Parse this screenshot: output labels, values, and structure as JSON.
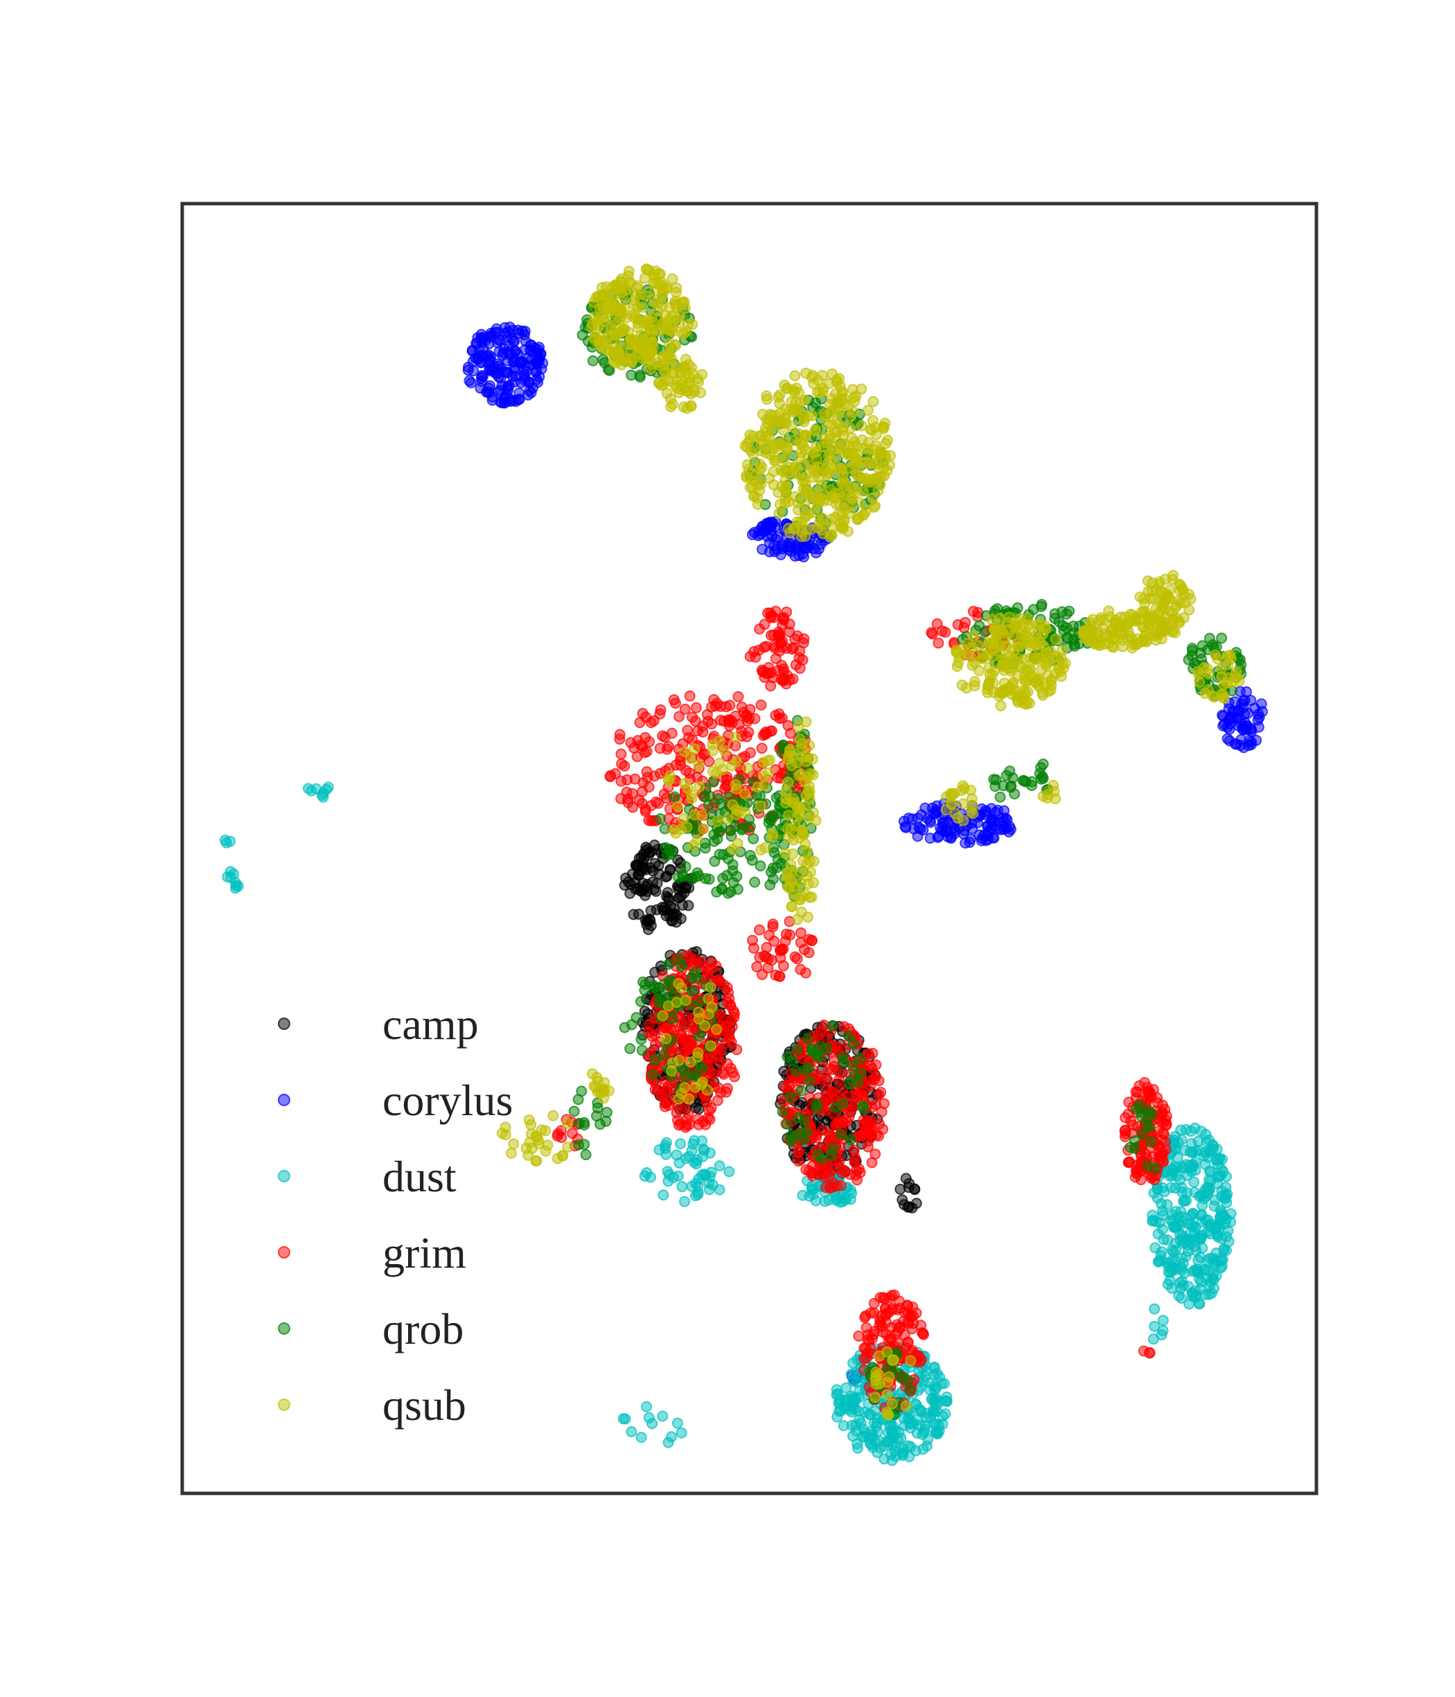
{
  "chart_data": {
    "type": "scatter",
    "title": "",
    "xlabel": "",
    "ylabel": "",
    "xlim": [
      0,
      100
    ],
    "ylim": [
      0,
      100
    ],
    "grid": false,
    "axes_ticks": false,
    "legend": {
      "placement": "lower-left"
    },
    "series": [
      {
        "name": "camp",
        "color": "#000000",
        "clusters": [
          {
            "cx": 42.0,
            "cy": 47.0,
            "rx": 3.0,
            "ry": 3.5,
            "n": 110
          },
          {
            "cx": 44.5,
            "cy": 36.0,
            "rx": 4.0,
            "ry": 6.5,
            "n": 200
          },
          {
            "cx": 57.0,
            "cy": 30.5,
            "rx": 4.5,
            "ry": 6.0,
            "n": 220
          },
          {
            "cx": 64.0,
            "cy": 23.0,
            "rx": 0.8,
            "ry": 1.5,
            "n": 12
          }
        ]
      },
      {
        "name": "corylus",
        "color": "#0000ff",
        "clusters": [
          {
            "cx": 28.5,
            "cy": 87.5,
            "rx": 3.5,
            "ry": 3.0,
            "n": 170
          },
          {
            "cx": 53.5,
            "cy": 74.0,
            "rx": 3.5,
            "ry": 1.5,
            "n": 90
          },
          {
            "cx": 68.5,
            "cy": 52.0,
            "rx": 5.0,
            "ry": 1.6,
            "n": 110
          },
          {
            "cx": 93.5,
            "cy": 60.0,
            "rx": 2.0,
            "ry": 2.2,
            "n": 60
          },
          {
            "cx": 59.5,
            "cy": 9.0,
            "rx": 0.6,
            "ry": 0.5,
            "n": 4
          }
        ]
      },
      {
        "name": "dust",
        "color": "#00bfbf",
        "clusters": [
          {
            "cx": 89.0,
            "cy": 21.5,
            "rx": 3.5,
            "ry": 7.0,
            "n": 300
          },
          {
            "cx": 62.5,
            "cy": 7.0,
            "rx": 5.0,
            "ry": 4.5,
            "n": 260
          },
          {
            "cx": 44.5,
            "cy": 25.0,
            "rx": 4.0,
            "ry": 2.5,
            "n": 50
          },
          {
            "cx": 57.0,
            "cy": 23.5,
            "rx": 2.5,
            "ry": 1.2,
            "n": 40
          },
          {
            "cx": 12.0,
            "cy": 54.5,
            "rx": 1.2,
            "ry": 0.6,
            "n": 8
          },
          {
            "cx": 4.5,
            "cy": 47.5,
            "rx": 0.6,
            "ry": 1.2,
            "n": 8
          },
          {
            "cx": 4.0,
            "cy": 50.5,
            "rx": 0.4,
            "ry": 0.4,
            "n": 3
          },
          {
            "cx": 41.5,
            "cy": 5.5,
            "rx": 3.0,
            "ry": 1.8,
            "n": 12
          },
          {
            "cx": 86.0,
            "cy": 13.0,
            "rx": 1.0,
            "ry": 1.5,
            "n": 6
          }
        ]
      },
      {
        "name": "grim",
        "color": "#ff0000",
        "clusters": [
          {
            "cx": 46.5,
            "cy": 56.5,
            "rx": 9.0,
            "ry": 5.5,
            "n": 260
          },
          {
            "cx": 52.5,
            "cy": 65.5,
            "rx": 2.5,
            "ry": 3.0,
            "n": 70
          },
          {
            "cx": 45.0,
            "cy": 35.0,
            "rx": 4.0,
            "ry": 7.0,
            "n": 260
          },
          {
            "cx": 57.5,
            "cy": 30.0,
            "rx": 4.5,
            "ry": 6.5,
            "n": 260
          },
          {
            "cx": 85.0,
            "cy": 28.0,
            "rx": 2.0,
            "ry": 4.0,
            "n": 130
          },
          {
            "cx": 62.5,
            "cy": 11.0,
            "rx": 3.0,
            "ry": 4.5,
            "n": 140
          },
          {
            "cx": 70.0,
            "cy": 66.5,
            "rx": 4.0,
            "ry": 2.0,
            "n": 30
          },
          {
            "cx": 53.0,
            "cy": 42.0,
            "rx": 3.0,
            "ry": 2.5,
            "n": 40
          },
          {
            "cx": 34.0,
            "cy": 28.0,
            "rx": 1.0,
            "ry": 1.5,
            "n": 10
          },
          {
            "cx": 85.0,
            "cy": 11.0,
            "rx": 0.5,
            "ry": 0.5,
            "n": 3
          }
        ]
      },
      {
        "name": "qrob",
        "color": "#007f00",
        "clusters": [
          {
            "cx": 40.0,
            "cy": 90.0,
            "rx": 5.0,
            "ry": 3.5,
            "n": 90
          },
          {
            "cx": 56.0,
            "cy": 79.5,
            "rx": 6.0,
            "ry": 5.5,
            "n": 110
          },
          {
            "cx": 74.5,
            "cy": 66.5,
            "rx": 6.0,
            "ry": 2.5,
            "n": 90
          },
          {
            "cx": 91.0,
            "cy": 64.0,
            "rx": 2.5,
            "ry": 2.5,
            "n": 50
          },
          {
            "cx": 48.5,
            "cy": 51.0,
            "rx": 7.0,
            "ry": 4.5,
            "n": 120
          },
          {
            "cx": 54.0,
            "cy": 53.0,
            "rx": 1.5,
            "ry": 7.5,
            "n": 60
          },
          {
            "cx": 43.0,
            "cy": 36.0,
            "rx": 4.0,
            "ry": 6.0,
            "n": 60
          },
          {
            "cx": 56.5,
            "cy": 31.0,
            "rx": 4.0,
            "ry": 5.5,
            "n": 50
          },
          {
            "cx": 73.0,
            "cy": 55.0,
            "rx": 2.0,
            "ry": 1.2,
            "n": 16
          },
          {
            "cx": 76.0,
            "cy": 55.5,
            "rx": 0.6,
            "ry": 1.2,
            "n": 8
          },
          {
            "cx": 36.0,
            "cy": 29.0,
            "rx": 1.5,
            "ry": 3.0,
            "n": 15
          },
          {
            "cx": 62.5,
            "cy": 8.5,
            "rx": 2.0,
            "ry": 2.5,
            "n": 20
          },
          {
            "cx": 85.0,
            "cy": 27.5,
            "rx": 1.5,
            "ry": 3.0,
            "n": 16
          }
        ]
      },
      {
        "name": "qsub",
        "color": "#bfbf00",
        "clusters": [
          {
            "cx": 40.5,
            "cy": 91.0,
            "rx": 4.5,
            "ry": 4.0,
            "n": 230
          },
          {
            "cx": 56.0,
            "cy": 80.5,
            "rx": 6.5,
            "ry": 6.5,
            "n": 380
          },
          {
            "cx": 44.0,
            "cy": 86.0,
            "rx": 2.0,
            "ry": 2.0,
            "n": 50
          },
          {
            "cx": 73.0,
            "cy": 64.5,
            "rx": 5.0,
            "ry": 3.5,
            "n": 200
          },
          {
            "cx": 83.0,
            "cy": 67.0,
            "rx": 4.0,
            "ry": 1.5,
            "n": 110
          },
          {
            "cx": 86.5,
            "cy": 69.0,
            "rx": 2.5,
            "ry": 2.5,
            "n": 70
          },
          {
            "cx": 91.5,
            "cy": 63.5,
            "rx": 2.0,
            "ry": 2.0,
            "n": 30
          },
          {
            "cx": 68.5,
            "cy": 53.5,
            "rx": 1.5,
            "ry": 1.5,
            "n": 20
          },
          {
            "cx": 54.5,
            "cy": 52.0,
            "rx": 1.4,
            "ry": 8.5,
            "n": 90
          },
          {
            "cx": 48.0,
            "cy": 54.0,
            "rx": 5.5,
            "ry": 5.0,
            "n": 60
          },
          {
            "cx": 31.5,
            "cy": 27.5,
            "rx": 3.5,
            "ry": 2.0,
            "n": 28
          },
          {
            "cx": 37.0,
            "cy": 32.0,
            "rx": 1.0,
            "ry": 2.0,
            "n": 14
          },
          {
            "cx": 45.0,
            "cy": 35.0,
            "rx": 3.0,
            "ry": 5.0,
            "n": 30
          },
          {
            "cx": 62.5,
            "cy": 9.0,
            "rx": 2.0,
            "ry": 3.0,
            "n": 20
          },
          {
            "cx": 76.5,
            "cy": 54.5,
            "rx": 0.8,
            "ry": 1.0,
            "n": 6
          }
        ]
      }
    ]
  }
}
